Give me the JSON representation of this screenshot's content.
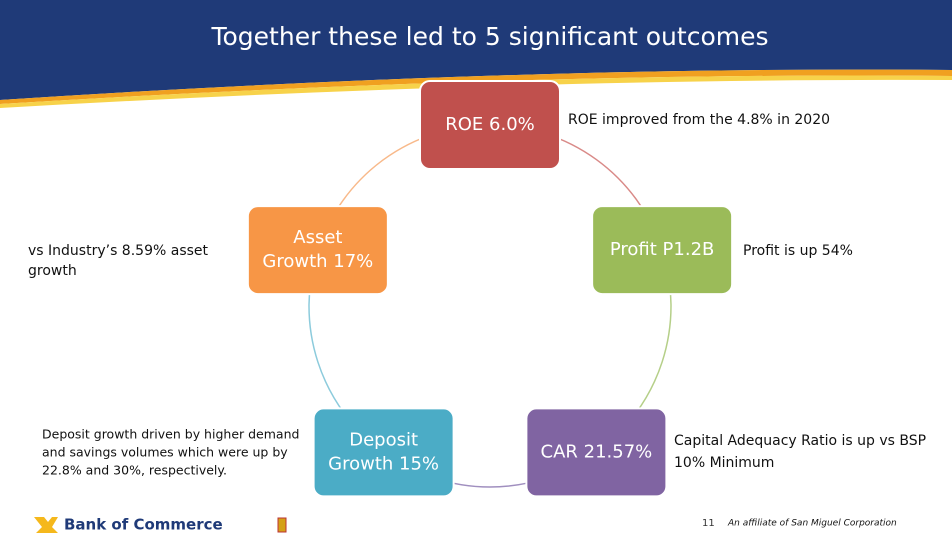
{
  "header": {
    "title": "Together these led to 5 significant outcomes"
  },
  "nodes": [
    {
      "label": [
        "ROE  6.0%"
      ],
      "note": [
        "ROE improved from the 4.8% in 2020"
      ]
    },
    {
      "label": [
        "Profit P1.2B"
      ],
      "note": [
        "Profit is up 54%"
      ]
    },
    {
      "label": [
        "CAR 21.57%"
      ],
      "note": [
        "Capital Adequacy Ratio is up vs BSP",
        "10% Minimum"
      ]
    },
    {
      "label": [
        "Deposit",
        "Growth 15%"
      ],
      "note": [
        "Deposit growth driven by higher demand",
        "and savings volumes which were up by",
        "22.8% and 30%, respectively."
      ]
    },
    {
      "label": [
        "Asset",
        "Growth 17%"
      ],
      "note": [
        "vs Industry’s 8.59% asset",
        "growth"
      ]
    }
  ],
  "footer": {
    "brand": "Bank of Commerce",
    "page": "11",
    "affiliate": "An affiliate of San Miguel Corporation"
  }
}
